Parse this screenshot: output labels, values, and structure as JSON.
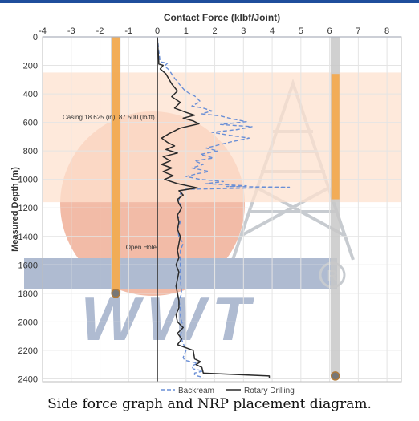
{
  "caption": "Side force graph and NRP placement diagram.",
  "watermark_text": "WWT",
  "colors": {
    "backream": "#6a8fd6",
    "rotary": "#2a2a2a",
    "tube": "#c8c8c8",
    "centralizer": "#f5a94a",
    "casing_band": "#fde2cf",
    "wm_blue": "#6f84ad",
    "wm_red": "#e88560",
    "wm_gray": "#9aa2ab"
  },
  "chart_data": {
    "type": "line",
    "title": "Contact Force (klbf/Joint)",
    "xlabel": "Contact Force (klbf/Joint)",
    "ylabel": "Measured Depth (m)",
    "xlim": [
      -4,
      8.5
    ],
    "ylim": [
      0,
      2420
    ],
    "y_inverted": true,
    "x_ticks": [
      -4,
      -3,
      -2,
      -1,
      0,
      1,
      2,
      3,
      4,
      5,
      6,
      7,
      8
    ],
    "y_ticks": [
      0,
      200,
      400,
      600,
      800,
      1000,
      1200,
      1400,
      1600,
      1800,
      2000,
      2200,
      2400
    ],
    "grid": true,
    "legend_position": "bottom",
    "annotations": [
      {
        "text": "Casing 18.625 (in), 87.500 (lb/ft)",
        "x": -3.3,
        "y": 580
      },
      {
        "text": "Open Hole",
        "x": -1.1,
        "y": 1490
      }
    ],
    "casing_interval": [
      250,
      1160
    ],
    "tubes": [
      {
        "x": -1.45,
        "top": 0,
        "bottom": 1800,
        "centralizer": [
          0,
          1800
        ]
      },
      {
        "x": 6.2,
        "top": 0,
        "bottom": 2380,
        "centralizer": [
          260,
          1140
        ]
      }
    ],
    "series": [
      {
        "name": "Backream",
        "x": [
          0,
          0.05,
          0.1,
          0.35,
          0.25,
          0.4,
          0.6,
          0.8,
          0.95,
          1.1,
          1.3,
          1.5,
          1.2,
          1.6,
          1.9,
          1.55,
          2.2,
          2.6,
          3.1,
          2.2,
          3.3,
          2.8,
          1.9,
          2.5,
          3.2,
          2.6,
          2.1,
          1.7,
          2.1,
          1.5,
          1.95,
          1.3,
          1.6,
          1.2,
          1.8,
          1.4,
          1.0,
          1.5,
          2.3,
          1.7,
          2.6,
          3.1,
          2.4,
          4.6,
          1.0,
          0.8,
          0.75,
          0.85,
          0.7,
          0.8,
          0.7,
          0.75,
          0.9,
          0.8,
          0.8,
          0.8,
          0.85,
          0.75,
          0.8,
          0.8,
          0.85,
          0.9,
          0.85,
          0.8,
          0.9,
          1.0,
          0.9,
          0.95,
          1.4,
          1.2,
          1.25,
          1.6,
          1.3,
          1.3,
          1.5,
          1.6
        ],
        "y": [
          0,
          100,
          175,
          185,
          205,
          230,
          290,
          340,
          375,
          395,
          415,
          455,
          485,
          500,
          520,
          540,
          555,
          575,
          595,
          615,
          630,
          650,
          670,
          690,
          710,
          735,
          760,
          780,
          800,
          825,
          850,
          870,
          895,
          920,
          945,
          960,
          980,
          1000,
          1015,
          1030,
          1040,
          1045,
          1050,
          1055,
          1070,
          1100,
          1150,
          1200,
          1250,
          1300,
          1350,
          1400,
          1450,
          1500,
          1600,
          1700,
          1800,
          1850,
          1900,
          1950,
          2000,
          2030,
          2060,
          2100,
          2150,
          2200,
          2250,
          2270,
          2290,
          2310,
          2330,
          2345,
          2360,
          2375,
          2385,
          2395
        ]
      },
      {
        "name": "Rotary Drilling",
        "x": [
          0,
          0.05,
          0.05,
          0.2,
          0.1,
          0.3,
          0.5,
          0.7,
          0.5,
          0.8,
          0.6,
          1.0,
          1.3,
          0.9,
          1.25,
          1.45,
          0.8,
          0.4,
          0.15,
          0.35,
          0.6,
          0.3,
          0.7,
          0.2,
          0.45,
          0.15,
          0.5,
          0.2,
          0.55,
          0.25,
          0.7,
          1.4,
          0.75,
          0.9,
          0.7,
          0.75,
          0.85,
          0.7,
          0.75,
          0.7,
          0.8,
          0.75,
          0.7,
          0.75,
          0.65,
          0.75,
          0.7,
          0.65,
          0.7,
          0.75,
          0.75,
          0.65,
          0.7,
          0.9,
          0.7,
          0.85,
          0.7,
          1.25,
          1.3,
          1.5,
          1.35,
          1.55,
          1.6,
          3.9,
          3.9
        ],
        "y": [
          0,
          175,
          190,
          200,
          225,
          260,
          330,
          380,
          420,
          460,
          500,
          530,
          550,
          570,
          590,
          610,
          640,
          680,
          710,
          740,
          765,
          790,
          815,
          840,
          870,
          895,
          920,
          945,
          975,
          1000,
          1030,
          1060,
          1080,
          1110,
          1140,
          1170,
          1200,
          1250,
          1300,
          1350,
          1400,
          1450,
          1500,
          1550,
          1600,
          1650,
          1700,
          1750,
          1800,
          1850,
          1900,
          1950,
          2000,
          2040,
          2080,
          2120,
          2160,
          2200,
          2260,
          2280,
          2300,
          2320,
          2360,
          2380,
          2395
        ]
      }
    ]
  }
}
